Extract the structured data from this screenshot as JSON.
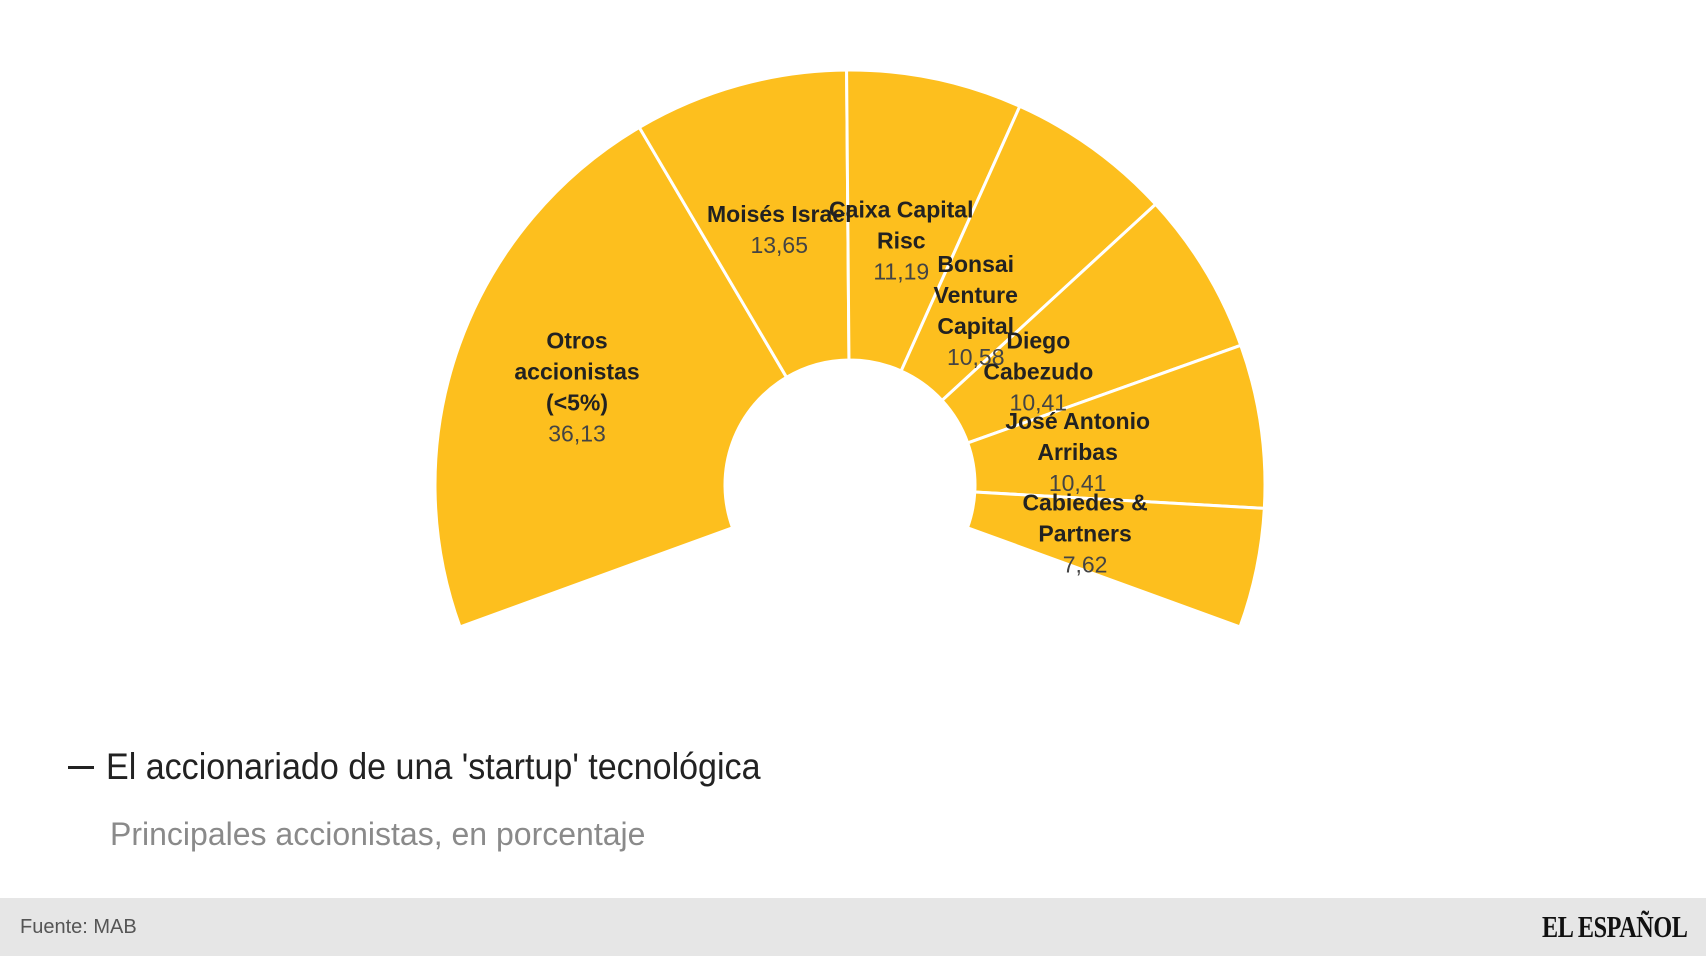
{
  "chart_data": {
    "type": "pie",
    "variant": "half-donut",
    "title": "El accionariado de una 'startup' tecnológica",
    "subtitle": "Principales accionistas, en porcentaje",
    "unit": "%",
    "slices": [
      {
        "label_lines": [
          "Otros",
          "accionistas",
          "(<5%)"
        ],
        "value": 36.13,
        "value_text": "36,13"
      },
      {
        "label_lines": [
          "Moisés Israel"
        ],
        "value": 13.65,
        "value_text": "13,65"
      },
      {
        "label_lines": [
          "Caixa Capital",
          "Risc"
        ],
        "value": 11.19,
        "value_text": "11,19"
      },
      {
        "label_lines": [
          "Bonsai",
          "Venture",
          "Capital"
        ],
        "value": 10.58,
        "value_text": "10,58"
      },
      {
        "label_lines": [
          "Diego",
          "Cabezudo"
        ],
        "value": 10.41,
        "value_text": "10,41"
      },
      {
        "label_lines": [
          "José Antonio",
          "Arribas"
        ],
        "value": 10.41,
        "value_text": "10,41"
      },
      {
        "label_lines": [
          "Cabiedes &",
          "Partners"
        ],
        "value": 7.62,
        "value_text": "7,62"
      }
    ],
    "colors": {
      "fill": "#FDBF1E",
      "separator": "#ffffff"
    }
  },
  "header": {
    "title": "El accionariado de una 'startup' tecnológica",
    "subtitle": "Principales accionistas, en porcentaje"
  },
  "footer": {
    "source": "Fuente: MAB",
    "brand": "EL ESPAÑOL"
  }
}
